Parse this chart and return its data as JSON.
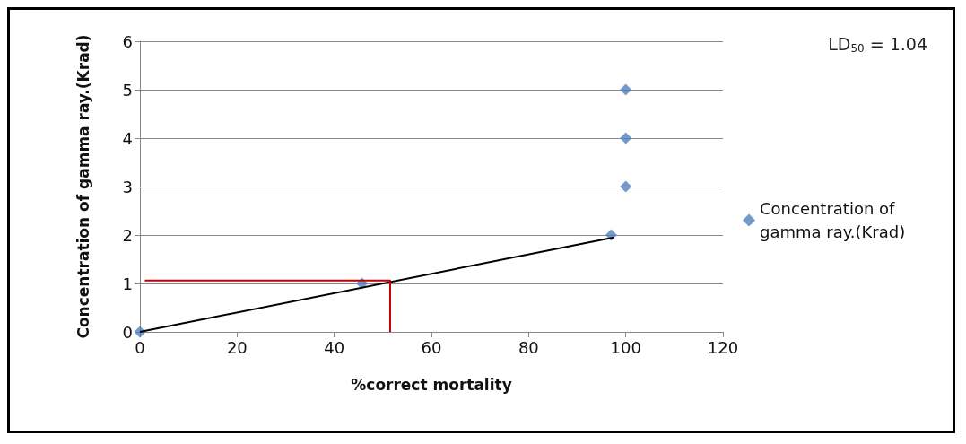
{
  "chart_data": {
    "type": "scatter",
    "xlabel": "%correct mortality",
    "ylabel": "Concentration of gamma ray.(Krad)",
    "series": [
      {
        "name": "Concentration of gamma ray.(Krad)",
        "color": "#4f81bd",
        "x": [
          0,
          45.7,
          97,
          100,
          100,
          100
        ],
        "values": [
          0,
          1,
          2,
          3,
          4,
          5
        ],
        "marker": "diamond"
      },
      {
        "type": "line",
        "color": "#000000",
        "x": [
          0,
          97.5
        ],
        "values": [
          0,
          1.95
        ],
        "marker": "none"
      },
      {
        "type": "line",
        "color": "#c00000",
        "x": [
          1,
          51.5,
          51.5
        ],
        "values": [
          1.06,
          1.06,
          0
        ],
        "marker": "none"
      }
    ],
    "annotations": [
      "LD$_{50}$ = 1.04"
    ],
    "xlim": [
      0,
      120
    ],
    "xticks": [
      0,
      20,
      40,
      60,
      80,
      100,
      120
    ],
    "ylim": [
      0,
      6
    ],
    "yticks": [
      0,
      1,
      2,
      3,
      4,
      5,
      6
    ],
    "grid": "y",
    "legend": "right"
  }
}
